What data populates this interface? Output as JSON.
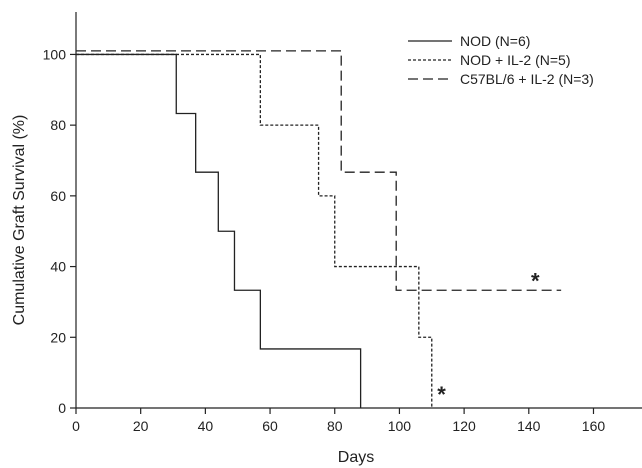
{
  "chart_data": {
    "type": "line",
    "title": "",
    "xlabel": "Days",
    "ylabel": "Cumulative Graft Survival (%)",
    "xlim": [
      0,
      175
    ],
    "ylim": [
      0,
      112
    ],
    "xticks": [
      0,
      20,
      40,
      60,
      80,
      100,
      120,
      140,
      160
    ],
    "yticks": [
      0,
      20,
      40,
      60,
      80,
      100
    ],
    "grid": false,
    "legend_position": "top-right",
    "step": true,
    "series": [
      {
        "name": "NOD (N=6)",
        "line_style": "solid",
        "x": [
          0,
          31,
          37,
          44,
          49,
          57,
          88
        ],
        "y": [
          100,
          83.3,
          66.7,
          50,
          33.3,
          16.7,
          0
        ]
      },
      {
        "name": "NOD + IL-2 (N=5)",
        "line_style": "dotted",
        "x": [
          0,
          57,
          75,
          80,
          106,
          110
        ],
        "y": [
          100,
          80,
          60,
          40,
          20,
          0
        ]
      },
      {
        "name": "C57BL/6 + IL-2 (N=3)",
        "line_style": "dashed",
        "x": [
          0,
          82,
          99,
          150
        ],
        "y": [
          101,
          66.7,
          33.3,
          33.3
        ]
      }
    ],
    "annotations": [
      {
        "text": "*",
        "x": 142,
        "y": 36
      },
      {
        "text": "*",
        "x": 113,
        "y": 4
      }
    ]
  }
}
